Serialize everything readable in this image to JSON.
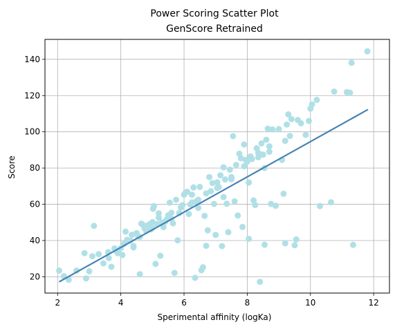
{
  "chart_data": {
    "type": "scatter",
    "title": "Power Scoring Scatter Plot",
    "subtitle": "GenScore Retrained",
    "xlabel": "Sperimental affinity (logKa)",
    "ylabel": "Score",
    "xlim": [
      1.6,
      12.5
    ],
    "ylim": [
      11,
      151
    ],
    "xticks": [
      2,
      4,
      6,
      8,
      10,
      12
    ],
    "yticks": [
      20,
      40,
      60,
      80,
      100,
      120,
      140
    ],
    "grid": true,
    "point_color": "#b0e0e6",
    "line_color": "#4682b4",
    "fit_line": {
      "x": [
        2.05,
        11.82
      ],
      "y": [
        17.2,
        112.3
      ]
    },
    "points": [
      [
        2.05,
        23.4
      ],
      [
        2.2,
        20.3
      ],
      [
        2.35,
        18.3
      ],
      [
        2.6,
        23.4
      ],
      [
        2.85,
        33.0
      ],
      [
        2.9,
        19.1
      ],
      [
        3.1,
        31.3
      ],
      [
        3.15,
        48.1
      ],
      [
        3.3,
        32.5
      ],
      [
        3.45,
        27.4
      ],
      [
        3.6,
        33.6
      ],
      [
        3.62,
        30.3
      ],
      [
        3.7,
        25.5
      ],
      [
        3.8,
        35.6
      ],
      [
        3.85,
        34.4
      ],
      [
        4.0,
        35.8
      ],
      [
        4.05,
        32.0
      ],
      [
        4.1,
        38.1
      ],
      [
        4.15,
        44.9
      ],
      [
        4.2,
        40.4
      ],
      [
        4.3,
        40.0
      ],
      [
        4.35,
        43.2
      ],
      [
        4.4,
        36.2
      ],
      [
        4.5,
        44.1
      ],
      [
        4.55,
        42.3
      ],
      [
        4.6,
        21.4
      ],
      [
        4.65,
        49.3
      ],
      [
        4.7,
        48.6
      ],
      [
        4.75,
        46.8
      ],
      [
        4.8,
        45.3
      ],
      [
        4.85,
        48.2
      ],
      [
        4.9,
        48.9
      ],
      [
        4.95,
        46.1
      ],
      [
        5.0,
        50.2
      ],
      [
        5.02,
        57.5
      ],
      [
        5.05,
        59.0
      ],
      [
        5.1,
        27.1
      ],
      [
        5.15,
        49.1
      ],
      [
        5.2,
        52.6
      ],
      [
        5.25,
        31.6
      ],
      [
        5.3,
        50.0
      ],
      [
        5.35,
        47.4
      ],
      [
        5.4,
        50.3
      ],
      [
        5.45,
        51.6
      ],
      [
        5.5,
        53.9
      ],
      [
        5.55,
        60.9
      ],
      [
        5.6,
        55.3
      ],
      [
        5.65,
        49.5
      ],
      [
        5.7,
        22.1
      ],
      [
        5.75,
        62.5
      ],
      [
        5.8,
        40.1
      ],
      [
        5.85,
        55.2
      ],
      [
        5.9,
        58.2
      ],
      [
        5.95,
        59.5
      ],
      [
        6.0,
        65.3
      ],
      [
        6.05,
        66.5
      ],
      [
        6.1,
        66.9
      ],
      [
        6.15,
        54.6
      ],
      [
        6.2,
        59.9
      ],
      [
        6.25,
        65.3
      ],
      [
        6.3,
        69.3
      ],
      [
        6.35,
        19.4
      ],
      [
        6.4,
        61.8
      ],
      [
        6.45,
        62.5
      ],
      [
        6.5,
        69.6
      ],
      [
        6.55,
        23.6
      ],
      [
        6.6,
        25.2
      ],
      [
        6.65,
        53.6
      ],
      [
        6.7,
        37.1
      ],
      [
        6.75,
        45.6
      ],
      [
        6.8,
        75.0
      ],
      [
        6.85,
        67.2
      ],
      [
        6.9,
        71.7
      ],
      [
        6.95,
        60.2
      ],
      [
        7.0,
        43.1
      ],
      [
        7.05,
        72.1
      ],
      [
        7.1,
        69.5
      ],
      [
        7.15,
        76.0
      ],
      [
        7.2,
        36.9
      ],
      [
        7.25,
        80.4
      ],
      [
        7.3,
        73.7
      ],
      [
        7.35,
        60.3
      ],
      [
        7.4,
        44.6
      ],
      [
        7.45,
        79.1
      ],
      [
        7.5,
        73.8
      ],
      [
        7.55,
        97.6
      ],
      [
        7.6,
        61.6
      ],
      [
        7.65,
        81.7
      ],
      [
        7.7,
        53.8
      ],
      [
        7.75,
        87.9
      ],
      [
        7.8,
        85.4
      ],
      [
        7.85,
        47.5
      ],
      [
        7.9,
        93.0
      ],
      [
        7.95,
        84.5
      ],
      [
        8.0,
        83.5
      ],
      [
        8.05,
        40.9
      ],
      [
        8.1,
        86.4
      ],
      [
        8.15,
        85.0
      ],
      [
        8.2,
        62.1
      ],
      [
        8.25,
        59.6
      ],
      [
        8.3,
        90.9
      ],
      [
        8.35,
        88.4
      ],
      [
        8.4,
        17.2
      ],
      [
        8.45,
        93.6
      ],
      [
        8.5,
        87.4
      ],
      [
        8.55,
        37.7
      ],
      [
        8.6,
        95.6
      ],
      [
        8.65,
        101.7
      ],
      [
        8.7,
        89.0
      ],
      [
        8.75,
        60.2
      ],
      [
        8.8,
        101.3
      ],
      [
        8.9,
        59.2
      ],
      [
        9.0,
        101.5
      ],
      [
        9.1,
        84.5
      ],
      [
        9.15,
        65.8
      ],
      [
        9.2,
        38.5
      ],
      [
        9.25,
        104.0
      ],
      [
        9.3,
        109.6
      ],
      [
        9.35,
        97.7
      ],
      [
        9.4,
        107.0
      ],
      [
        9.5,
        37.4
      ],
      [
        9.55,
        40.6
      ],
      [
        9.6,
        106.5
      ],
      [
        9.7,
        104.7
      ],
      [
        9.85,
        98.3
      ],
      [
        10.0,
        112.8
      ],
      [
        10.05,
        115.1
      ],
      [
        10.2,
        117.6
      ],
      [
        10.3,
        59.0
      ],
      [
        10.65,
        61.1
      ],
      [
        10.75,
        122.2
      ],
      [
        11.15,
        121.9
      ],
      [
        11.25,
        121.6
      ],
      [
        11.3,
        138.1
      ],
      [
        11.35,
        37.6
      ],
      [
        11.8,
        144.4
      ],
      [
        4.4,
        37.0
      ],
      [
        5.0,
        47.0
      ],
      [
        5.6,
        52.0
      ],
      [
        6.25,
        61.0
      ],
      [
        6.7,
        66.0
      ],
      [
        7.05,
        69.0
      ],
      [
        7.5,
        75.0
      ],
      [
        7.9,
        81.0
      ],
      [
        8.35,
        86.0
      ],
      [
        8.7,
        92.0
      ],
      [
        9.2,
        95.0
      ],
      [
        9.95,
        106.0
      ],
      [
        3.0,
        23.0
      ],
      [
        3.9,
        33.0
      ],
      [
        4.6,
        42.0
      ],
      [
        5.2,
        55.0
      ],
      [
        6.45,
        58.0
      ],
      [
        7.25,
        64.0
      ],
      [
        8.05,
        72.0
      ],
      [
        8.55,
        80.0
      ]
    ]
  }
}
